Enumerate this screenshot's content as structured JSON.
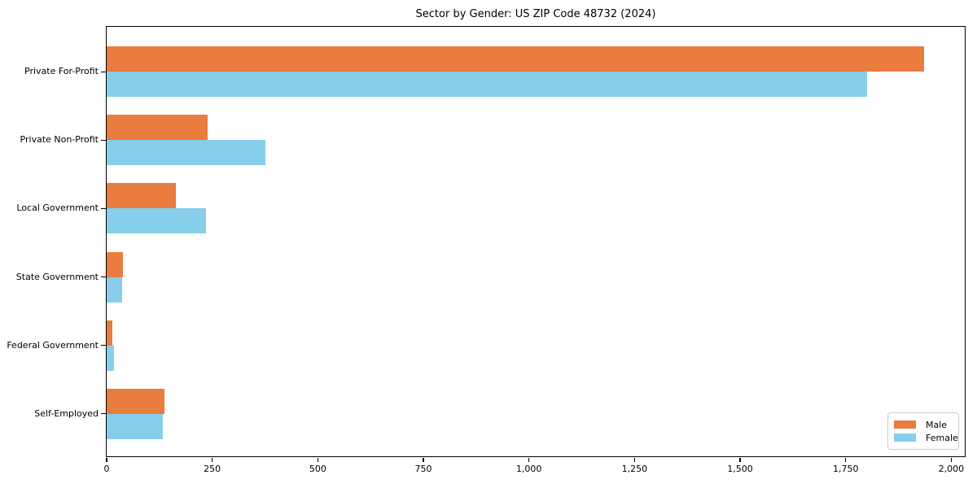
{
  "title": "Sector by Gender: US ZIP Code 48732 (2024)",
  "colors": {
    "male": "#e97c3e",
    "female": "#87ceeb",
    "plot_border": "#000000",
    "legend_border": "#cccccc",
    "text": "#000000"
  },
  "legend": {
    "position": "lower right",
    "items": [
      {
        "label": "Male",
        "series": "male"
      },
      {
        "label": "Female",
        "series": "female"
      }
    ]
  },
  "chart_data": {
    "type": "bar",
    "orientation": "horizontal",
    "title": "Sector by Gender: US ZIP Code 48732 (2024)",
    "xlabel": "",
    "ylabel": "",
    "grid": false,
    "legend_position": "lower right",
    "categories": [
      "Private For-Profit",
      "Private Non-Profit",
      "Local Government",
      "State Government",
      "Federal Government",
      "Self-Employed"
    ],
    "series": [
      {
        "name": "Male",
        "color": "#e97c3e",
        "values": [
          1935,
          240,
          164,
          39,
          13,
          136
        ]
      },
      {
        "name": "Female",
        "color": "#87ceeb",
        "values": [
          1800,
          375,
          235,
          37,
          17,
          133
        ]
      }
    ],
    "xlim": [
      0,
      2032
    ],
    "xticks": [
      0,
      250,
      500,
      750,
      1000,
      1250,
      1500,
      1750,
      2000
    ],
    "xtick_labels": [
      "0",
      "250",
      "500",
      "750",
      "1,000",
      "1,250",
      "1,500",
      "1,750",
      "2,000"
    ]
  }
}
